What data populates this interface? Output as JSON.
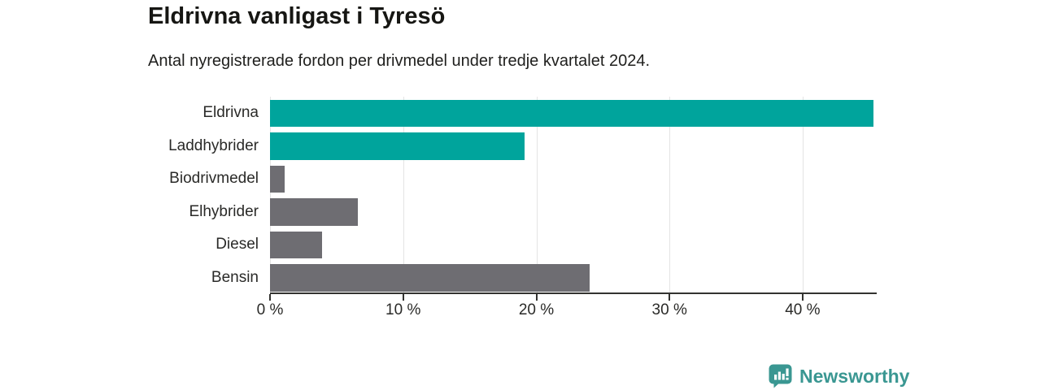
{
  "header": {
    "title": "Eldrivna vanligast i Tyresö",
    "subtitle": "Antal nyregistrerade fordon per drivmedel under tredje kvartalet 2024."
  },
  "chart_data": {
    "type": "bar",
    "orientation": "horizontal",
    "title": "Eldrivna vanligast i Tyresö",
    "subtitle": "Antal nyregistrerade fordon per drivmedel under tredje kvartalet 2024.",
    "categories": [
      "Eldrivna",
      "Laddhybrider",
      "Biodrivmedel",
      "Elhybrider",
      "Diesel",
      "Bensin"
    ],
    "values": [
      45.3,
      19.1,
      1.1,
      6.6,
      3.9,
      24.0
    ],
    "unit": "%",
    "bar_colors": [
      "#00a49c",
      "#00a49c",
      "#6e6d72",
      "#6e6d72",
      "#6e6d72",
      "#6e6d72"
    ],
    "xlim": [
      0,
      45.5
    ],
    "x_ticks": {
      "values": [
        0,
        10,
        20,
        30,
        40
      ],
      "labels": [
        "0 %",
        "10 %",
        "20 %",
        "30 %",
        "40 %"
      ]
    },
    "grid": true,
    "legend": "none"
  },
  "footer": {
    "logo_text": "Newsworthy"
  },
  "colors": {
    "accent_teal": "#00a49c",
    "neutral_gray": "#6e6d72",
    "logo_teal": "#3a9792",
    "axis_dark": "#333330",
    "gridline_gray": "#e4e4e4"
  }
}
